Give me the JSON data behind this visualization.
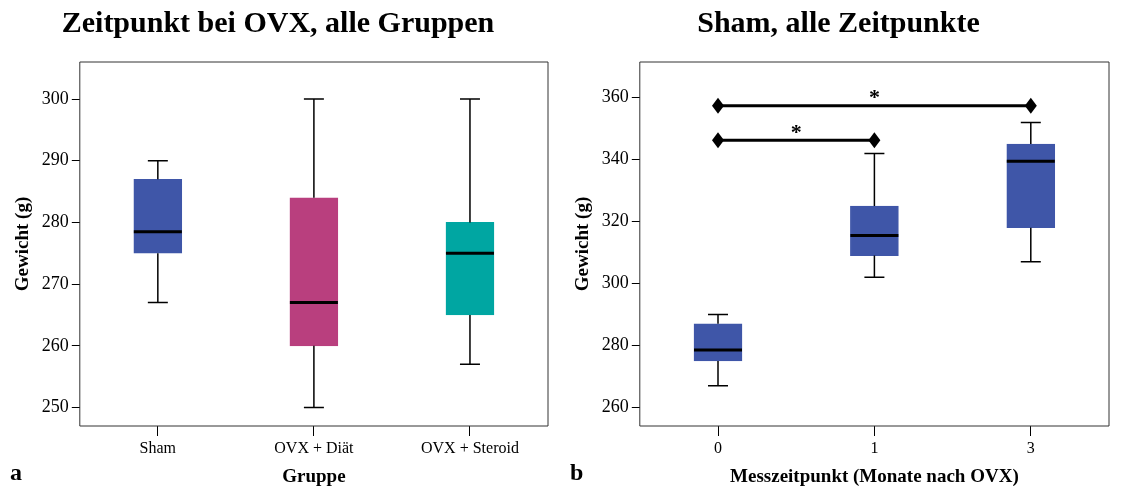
{
  "chart_data": [
    {
      "type": "box",
      "title": "Zeitpunkt bei OVX, alle Gruppen",
      "xlabel": "Gruppe",
      "ylabel": "Gewicht (g)",
      "categories": [
        "Sham",
        "OVX + Diät",
        "OVX + Steroid"
      ],
      "colors": [
        "#3f56a8",
        "#b93f7e",
        "#00a6a2"
      ],
      "boxes": [
        {
          "low": 267,
          "q1": 275,
          "median": 278.5,
          "q3": 287,
          "high": 290
        },
        {
          "low": 250,
          "q1": 260,
          "median": 267,
          "q3": 284,
          "high": 300
        },
        {
          "low": 257,
          "q1": 265,
          "median": 275,
          "q3": 280,
          "high": 300
        }
      ],
      "ylim": [
        247,
        306
      ],
      "yticks": [
        250,
        260,
        270,
        280,
        290,
        300
      ],
      "grid": false,
      "legend": false,
      "annotations": [
        "a"
      ]
    },
    {
      "type": "box",
      "title": "Sham, alle Zeitpunkte",
      "xlabel": "Messzeitpunkt (Monate nach OVX)",
      "ylabel": "Gewicht (g)",
      "categories": [
        "0",
        "1",
        "3"
      ],
      "colors": [
        "#3f56a8",
        "#3f56a8",
        "#3f56a8"
      ],
      "boxes": [
        {
          "low": 267,
          "q1": 275,
          "median": 278.5,
          "q3": 287,
          "high": 290
        },
        {
          "low": 302,
          "q1": 309,
          "median": 315.5,
          "q3": 325,
          "high": 342
        },
        {
          "low": 307,
          "q1": 318,
          "median": 339.5,
          "q3": 345,
          "high": 352
        }
      ],
      "ylim": [
        254,
        371.5
      ],
      "yticks": [
        260,
        280,
        300,
        320,
        340,
        360
      ],
      "grid": false,
      "legend": false,
      "annotations": [
        "b",
        "*",
        "*"
      ]
    }
  ]
}
